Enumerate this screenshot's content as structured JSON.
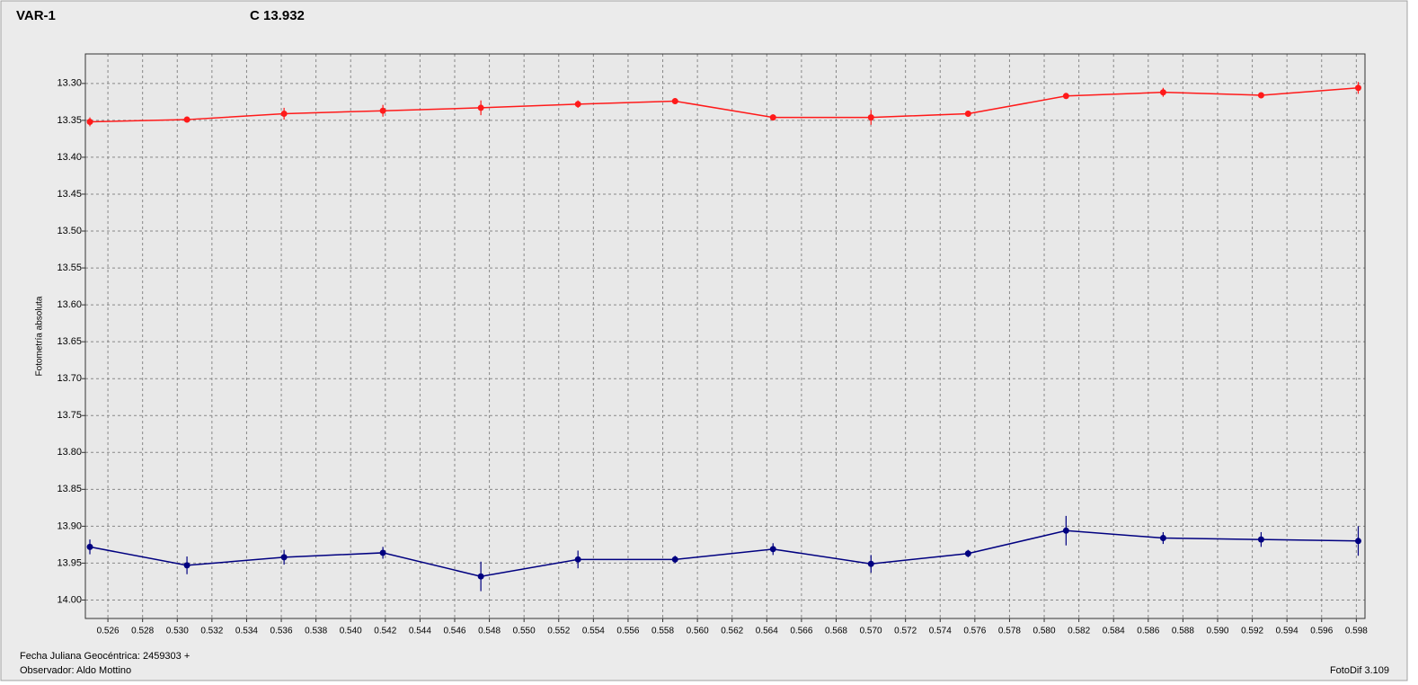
{
  "chart_data": {
    "type": "line",
    "y_label": "Fotometría absoluta",
    "footer_date": "Fecha Juliana Geocéntrica: 2459303 +",
    "footer_observer": "Observador: Aldo Mottino",
    "software": "FotoDif 3.109",
    "x": [
      0.52496,
      0.53056,
      0.53616,
      0.54186,
      0.54751,
      0.55311,
      0.55871,
      0.56436,
      0.57001,
      0.57561,
      0.58126,
      0.58686,
      0.59251,
      0.59811
    ],
    "series": [
      {
        "name": "VAR-1",
        "color": "#ff1a1a",
        "values": [
          13.352,
          13.349,
          13.341,
          13.337,
          13.333,
          13.328,
          13.324,
          13.346,
          13.346,
          13.341,
          13.317,
          13.312,
          13.316,
          13.306
        ],
        "errors": [
          0.006,
          0.004,
          0.008,
          0.008,
          0.01,
          0.005,
          0.004,
          0.004,
          0.01,
          0.004,
          0.004,
          0.006,
          0.004,
          0.008
        ]
      },
      {
        "name": "C 13.932",
        "color": "#000080",
        "values": [
          13.928,
          13.953,
          13.942,
          13.936,
          13.968,
          13.945,
          13.945,
          13.931,
          13.951,
          13.937,
          13.906,
          13.916,
          13.918,
          13.92
        ],
        "errors": [
          0.01,
          0.012,
          0.01,
          0.008,
          0.02,
          0.012,
          0.005,
          0.008,
          0.012,
          0.005,
          0.02,
          0.008,
          0.01,
          0.02
        ]
      }
    ],
    "xlim": [
      0.5247,
      0.5985
    ],
    "xticks": [
      0.526,
      0.528,
      {
        "value": 0.53,
        "label": "0.530"
      },
      0.532,
      0.534,
      0.536,
      0.538,
      {
        "value": 0.54,
        "label": "0.540"
      },
      0.542,
      0.544,
      0.546,
      0.548,
      {
        "value": 0.55,
        "label": "0.550"
      },
      0.552,
      0.554,
      0.556,
      0.558,
      {
        "value": 0.56,
        "label": "0.560"
      },
      0.562,
      0.564,
      0.566,
      0.568,
      {
        "value": 0.57,
        "label": "0.570"
      },
      0.572,
      0.574,
      0.576,
      0.578,
      {
        "value": 0.58,
        "label": "0.580"
      },
      0.582,
      0.584,
      0.586,
      0.588,
      {
        "value": 0.59,
        "label": "0.590"
      },
      0.592,
      0.594,
      0.596,
      0.598
    ],
    "ylim": [
      14.025,
      13.26
    ],
    "yticks": [
      {
        "value": 13.3,
        "label": "13.30"
      },
      13.35,
      {
        "value": 13.4,
        "label": "13.40"
      },
      13.45,
      {
        "value": 13.5,
        "label": "13.50"
      },
      13.55,
      {
        "value": 13.6,
        "label": "13.60"
      },
      13.65,
      {
        "value": 13.7,
        "label": "13.70"
      },
      13.75,
      {
        "value": 13.8,
        "label": "13.80"
      },
      13.85,
      {
        "value": 13.9,
        "label": "13.90"
      },
      13.95,
      {
        "value": 14.0,
        "label": "14.00"
      }
    ],
    "grid": true
  }
}
